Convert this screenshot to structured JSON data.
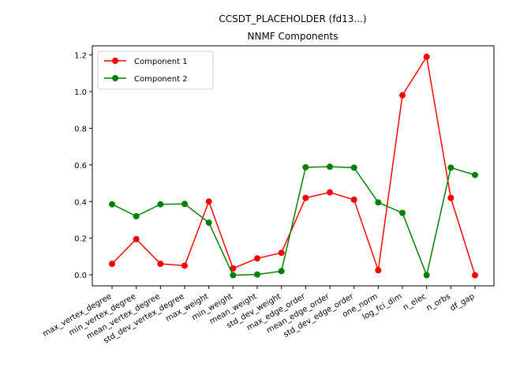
{
  "chart_data": {
    "type": "line",
    "title": [
      "CCSDT_PLACEHOLDER (fd13...)",
      "NNMF Components"
    ],
    "xlabel": "",
    "ylabel": "",
    "categories": [
      "max_vertex_degree",
      "min_vertex_degree",
      "mean_vertex_degree",
      "std_dev_vertex_degree",
      "max_weight",
      "min_weight",
      "mean_weight",
      "std_dev_weight",
      "max_edge_order",
      "mean_edge_order",
      "std_dev_edge_order",
      "one_norm",
      "log_fci_dim",
      "n_elec",
      "n_orbs",
      "df_gap"
    ],
    "ylim": [
      -0.06,
      1.25
    ],
    "yticks": [
      "0.0",
      "0.2",
      "0.4",
      "0.6",
      "0.8",
      "1.0",
      "1.2"
    ],
    "ytick_values": [
      0.0,
      0.2,
      0.4,
      0.6,
      0.8,
      1.0,
      1.2
    ],
    "legend_position": "upper-left",
    "grid": false,
    "series": [
      {
        "name": "Component 1",
        "color": "#ff0000",
        "values": [
          0.06,
          0.195,
          0.06,
          0.05,
          0.4,
          0.035,
          0.09,
          0.12,
          0.42,
          0.45,
          0.41,
          0.025,
          0.98,
          1.19,
          0.42,
          -0.002
        ]
      },
      {
        "name": "Component 2",
        "color": "#008000",
        "values": [
          0.385,
          0.32,
          0.385,
          0.387,
          0.285,
          -0.002,
          0.002,
          0.02,
          0.587,
          0.59,
          0.585,
          0.395,
          0.338,
          -0.002,
          0.585,
          0.545
        ]
      }
    ]
  }
}
